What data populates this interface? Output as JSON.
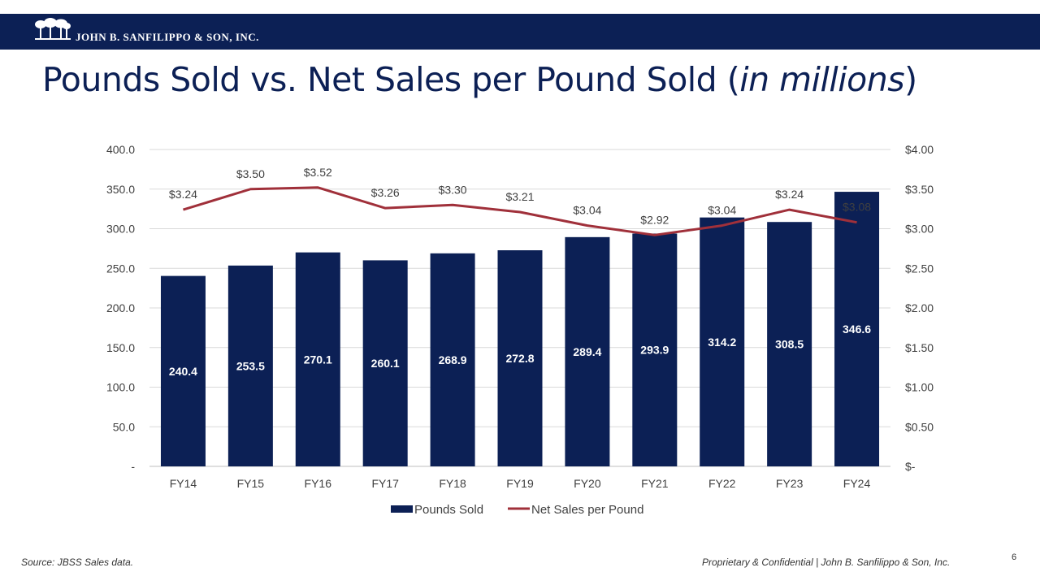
{
  "header": {
    "company": "JOHN B. SANFILIPPO & SON, INC.",
    "logo_icon": "palm-trees-logo-icon"
  },
  "title": {
    "main": "Pounds Sold vs. Net Sales per Pound Sold (",
    "italic": "in millions",
    "end": ")"
  },
  "chart_data": {
    "type": "bar",
    "categories": [
      "FY14",
      "FY15",
      "FY16",
      "FY17",
      "FY18",
      "FY19",
      "FY20",
      "FY21",
      "FY22",
      "FY23",
      "FY24"
    ],
    "series": [
      {
        "name": "Pounds Sold",
        "type": "bar",
        "axis": "left",
        "color": "#0c2055",
        "values": [
          240.4,
          253.5,
          270.1,
          260.1,
          268.9,
          272.8,
          289.4,
          293.9,
          314.2,
          308.5,
          346.6
        ],
        "labels": [
          "240.4",
          "253.5",
          "270.1",
          "260.1",
          "268.9",
          "272.8",
          "289.4",
          "293.9",
          "314.2",
          "308.5",
          "346.6"
        ]
      },
      {
        "name": "Net Sales per Pound",
        "type": "line",
        "axis": "right",
        "color": "#a0303a",
        "values": [
          3.24,
          3.5,
          3.52,
          3.26,
          3.3,
          3.21,
          3.04,
          2.92,
          3.04,
          3.24,
          3.08
        ],
        "labels": [
          "$3.24",
          "$3.50",
          "$3.52",
          "$3.26",
          "$3.30",
          "$3.21",
          "$3.04",
          "$2.92",
          "$3.04",
          "$3.24",
          "$3.08"
        ]
      }
    ],
    "y_left": {
      "lim": [
        0,
        400
      ],
      "ticks": [
        0,
        50,
        100,
        150,
        200,
        250,
        300,
        350,
        400
      ],
      "tick_labels": [
        "-",
        "50.0",
        "100.0",
        "150.0",
        "200.0",
        "250.0",
        "300.0",
        "350.0",
        "400.0"
      ]
    },
    "y_right": {
      "lim": [
        0,
        4
      ],
      "ticks": [
        0,
        0.5,
        1,
        1.5,
        2,
        2.5,
        3,
        3.5,
        4
      ],
      "tick_labels": [
        "$-",
        "$0.50",
        "$1.00",
        "$1.50",
        "$2.00",
        "$2.50",
        "$3.00",
        "$3.50",
        "$4.00"
      ]
    },
    "grid": true,
    "legend_position": "bottom"
  },
  "footer": {
    "source": "Source: JBSS Sales data.",
    "confidential": "Proprietary & Confidential | John B. Sanfilippo & Son, Inc.",
    "page": "6"
  }
}
